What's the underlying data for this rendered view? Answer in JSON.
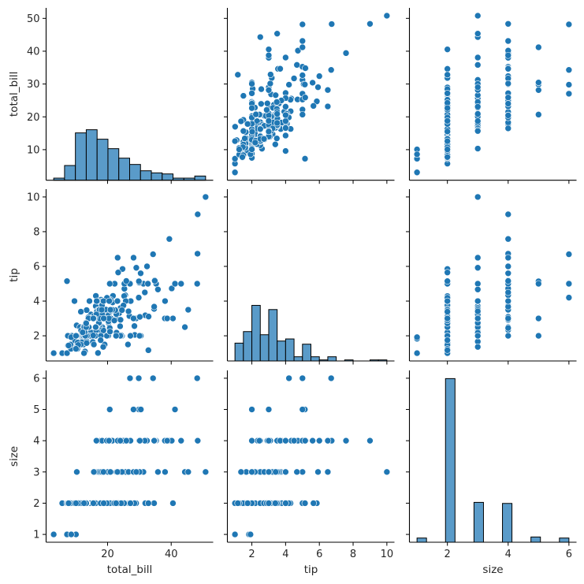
{
  "chart_data": {
    "type": "scatter",
    "kind": "pairplot",
    "variables": [
      "total_bill",
      "tip",
      "size"
    ],
    "axis_labels": {
      "total_bill": "total_bill",
      "tip": "tip",
      "size": "size"
    },
    "ranges": {
      "total_bill": [
        0.683,
        53.197
      ],
      "tip": [
        0.55,
        10.45
      ],
      "size": [
        0.75,
        6.25
      ]
    },
    "y_ticks": {
      "total_bill": [
        10,
        20,
        30,
        40,
        50
      ],
      "tip": [
        2,
        4,
        6,
        8,
        10
      ],
      "size": [
        1,
        2,
        3,
        4,
        5,
        6
      ]
    },
    "x_ticks": {
      "total_bill": [
        20,
        40
      ],
      "tip": [
        2,
        4,
        6,
        8,
        10
      ],
      "size": [
        2,
        4,
        6
      ]
    },
    "diagonal": {
      "type": "bar",
      "histogram_bins": {
        "total_bill": 14,
        "tip": 18,
        "size": 16
      },
      "shared_y": true
    },
    "grid": false,
    "colors": {
      "point": "#1f77b4",
      "point_edge": "#ffffff",
      "bar": "#5a9bc9",
      "bar_edge": "#000000"
    },
    "columns": [
      "total_bill",
      "tip",
      "size"
    ],
    "observations": [
      [
        16.99,
        1.01,
        2
      ],
      [
        10.34,
        1.66,
        3
      ],
      [
        21.01,
        3.5,
        3
      ],
      [
        23.68,
        3.31,
        2
      ],
      [
        24.59,
        3.61,
        4
      ],
      [
        25.29,
        4.71,
        4
      ],
      [
        8.77,
        2.0,
        2
      ],
      [
        26.88,
        3.12,
        4
      ],
      [
        15.04,
        1.96,
        2
      ],
      [
        14.78,
        3.23,
        2
      ],
      [
        10.27,
        1.71,
        2
      ],
      [
        35.26,
        5.0,
        4
      ],
      [
        15.42,
        1.57,
        2
      ],
      [
        18.43,
        3.0,
        4
      ],
      [
        14.83,
        3.02,
        2
      ],
      [
        21.58,
        3.92,
        2
      ],
      [
        10.33,
        1.67,
        3
      ],
      [
        16.29,
        3.71,
        3
      ],
      [
        16.97,
        3.5,
        3
      ],
      [
        20.65,
        3.35,
        3
      ],
      [
        17.92,
        4.08,
        2
      ],
      [
        20.29,
        2.75,
        2
      ],
      [
        15.77,
        2.23,
        2
      ],
      [
        39.42,
        7.58,
        4
      ],
      [
        19.82,
        3.18,
        2
      ],
      [
        17.81,
        2.34,
        4
      ],
      [
        13.37,
        2.0,
        2
      ],
      [
        12.69,
        2.0,
        2
      ],
      [
        21.7,
        4.3,
        2
      ],
      [
        19.65,
        3.0,
        2
      ],
      [
        9.55,
        1.45,
        2
      ],
      [
        18.35,
        2.5,
        4
      ],
      [
        15.06,
        3.0,
        2
      ],
      [
        20.69,
        2.45,
        4
      ],
      [
        17.78,
        3.27,
        2
      ],
      [
        24.06,
        3.6,
        3
      ],
      [
        16.31,
        2.0,
        3
      ],
      [
        16.93,
        3.07,
        3
      ],
      [
        18.69,
        2.31,
        3
      ],
      [
        31.27,
        5.0,
        3
      ],
      [
        16.04,
        2.24,
        3
      ],
      [
        17.46,
        2.54,
        2
      ],
      [
        13.94,
        3.06,
        2
      ],
      [
        9.68,
        1.32,
        2
      ],
      [
        30.4,
        5.6,
        4
      ],
      [
        18.29,
        3.0,
        2
      ],
      [
        22.23,
        5.0,
        2
      ],
      [
        32.4,
        6.0,
        4
      ],
      [
        28.55,
        2.05,
        3
      ],
      [
        18.04,
        3.0,
        2
      ],
      [
        12.54,
        2.5,
        2
      ],
      [
        10.29,
        2.6,
        2
      ],
      [
        34.81,
        5.2,
        4
      ],
      [
        9.94,
        1.56,
        2
      ],
      [
        25.56,
        4.34,
        4
      ],
      [
        19.49,
        3.51,
        2
      ],
      [
        38.01,
        3.0,
        4
      ],
      [
        26.41,
        1.5,
        2
      ],
      [
        11.24,
        1.76,
        2
      ],
      [
        48.27,
        6.73,
        4
      ],
      [
        20.29,
        3.21,
        2
      ],
      [
        13.81,
        2.0,
        2
      ],
      [
        11.02,
        1.98,
        2
      ],
      [
        18.29,
        3.76,
        4
      ],
      [
        17.59,
        2.64,
        3
      ],
      [
        20.08,
        3.15,
        3
      ],
      [
        16.45,
        2.47,
        2
      ],
      [
        3.07,
        1.0,
        1
      ],
      [
        20.23,
        2.01,
        2
      ],
      [
        15.01,
        2.09,
        2
      ],
      [
        12.02,
        1.97,
        2
      ],
      [
        17.07,
        3.0,
        3
      ],
      [
        26.86,
        3.14,
        2
      ],
      [
        25.28,
        5.0,
        2
      ],
      [
        14.73,
        2.2,
        2
      ],
      [
        10.51,
        1.25,
        2
      ],
      [
        17.92,
        3.08,
        2
      ],
      [
        27.2,
        4.0,
        4
      ],
      [
        22.76,
        3.0,
        2
      ],
      [
        17.29,
        2.71,
        2
      ],
      [
        19.44,
        3.0,
        2
      ],
      [
        16.66,
        3.4,
        2
      ],
      [
        10.07,
        1.83,
        1
      ],
      [
        32.68,
        5.0,
        2
      ],
      [
        15.98,
        2.03,
        2
      ],
      [
        34.83,
        5.17,
        4
      ],
      [
        13.03,
        2.0,
        2
      ],
      [
        18.28,
        4.0,
        2
      ],
      [
        24.71,
        5.85,
        2
      ],
      [
        21.16,
        3.0,
        2
      ],
      [
        28.97,
        3.0,
        2
      ],
      [
        22.49,
        3.5,
        2
      ],
      [
        5.75,
        1.0,
        2
      ],
      [
        16.32,
        4.3,
        2
      ],
      [
        22.75,
        3.25,
        2
      ],
      [
        40.17,
        4.73,
        4
      ],
      [
        27.28,
        4.0,
        2
      ],
      [
        12.03,
        1.5,
        2
      ],
      [
        21.01,
        3.0,
        2
      ],
      [
        12.46,
        1.5,
        2
      ],
      [
        11.35,
        2.5,
        2
      ],
      [
        15.38,
        3.0,
        2
      ],
      [
        44.3,
        2.5,
        3
      ],
      [
        22.42,
        3.48,
        2
      ],
      [
        20.92,
        4.08,
        2
      ],
      [
        15.36,
        1.64,
        2
      ],
      [
        20.49,
        4.06,
        2
      ],
      [
        25.21,
        4.29,
        2
      ],
      [
        18.24,
        3.76,
        2
      ],
      [
        14.31,
        4.0,
        2
      ],
      [
        14.0,
        3.0,
        2
      ],
      [
        7.25,
        1.0,
        1
      ],
      [
        38.07,
        4.0,
        3
      ],
      [
        23.95,
        2.55,
        2
      ],
      [
        25.71,
        4.0,
        3
      ],
      [
        17.31,
        3.5,
        2
      ],
      [
        29.93,
        5.07,
        4
      ],
      [
        10.65,
        1.5,
        2
      ],
      [
        12.43,
        1.8,
        2
      ],
      [
        24.08,
        2.92,
        4
      ],
      [
        11.69,
        2.31,
        2
      ],
      [
        13.42,
        1.68,
        2
      ],
      [
        14.26,
        2.5,
        2
      ],
      [
        15.95,
        2.0,
        2
      ],
      [
        12.48,
        2.52,
        2
      ],
      [
        29.8,
        4.2,
        6
      ],
      [
        8.52,
        1.48,
        2
      ],
      [
        14.52,
        2.0,
        2
      ],
      [
        11.38,
        2.0,
        2
      ],
      [
        22.82,
        2.18,
        3
      ],
      [
        19.08,
        1.5,
        2
      ],
      [
        20.27,
        2.83,
        2
      ],
      [
        11.17,
        1.5,
        2
      ],
      [
        12.26,
        2.0,
        2
      ],
      [
        18.26,
        3.25,
        2
      ],
      [
        8.51,
        1.25,
        2
      ],
      [
        10.33,
        2.0,
        2
      ],
      [
        14.15,
        2.0,
        2
      ],
      [
        16.0,
        2.0,
        2
      ],
      [
        13.16,
        2.75,
        2
      ],
      [
        17.47,
        3.5,
        2
      ],
      [
        34.3,
        6.7,
        6
      ],
      [
        41.19,
        5.0,
        5
      ],
      [
        27.05,
        5.0,
        6
      ],
      [
        16.43,
        2.3,
        2
      ],
      [
        8.35,
        1.5,
        2
      ],
      [
        18.64,
        1.36,
        3
      ],
      [
        11.87,
        1.63,
        2
      ],
      [
        9.78,
        1.73,
        2
      ],
      [
        7.51,
        2.0,
        2
      ],
      [
        14.07,
        2.5,
        2
      ],
      [
        13.13,
        2.0,
        2
      ],
      [
        17.26,
        2.74,
        3
      ],
      [
        24.55,
        2.0,
        4
      ],
      [
        19.77,
        2.0,
        4
      ],
      [
        29.85,
        5.14,
        5
      ],
      [
        48.17,
        5.0,
        6
      ],
      [
        25.0,
        3.75,
        4
      ],
      [
        13.39,
        2.61,
        2
      ],
      [
        16.49,
        2.0,
        4
      ],
      [
        21.5,
        3.5,
        4
      ],
      [
        12.66,
        2.5,
        2
      ],
      [
        16.21,
        2.0,
        3
      ],
      [
        13.81,
        2.0,
        2
      ],
      [
        17.51,
        3.0,
        2
      ],
      [
        24.52,
        3.48,
        3
      ],
      [
        20.76,
        2.24,
        2
      ],
      [
        31.71,
        4.5,
        4
      ],
      [
        10.59,
        1.61,
        2
      ],
      [
        10.63,
        2.0,
        2
      ],
      [
        50.81,
        10.0,
        3
      ],
      [
        15.81,
        3.16,
        2
      ],
      [
        7.25,
        5.15,
        2
      ],
      [
        31.85,
        3.18,
        2
      ],
      [
        16.82,
        4.0,
        2
      ],
      [
        32.9,
        3.11,
        2
      ],
      [
        17.89,
        2.0,
        2
      ],
      [
        14.48,
        2.0,
        2
      ],
      [
        9.6,
        4.0,
        2
      ],
      [
        34.63,
        3.55,
        2
      ],
      [
        34.65,
        3.68,
        4
      ],
      [
        23.33,
        5.65,
        2
      ],
      [
        45.35,
        3.5,
        3
      ],
      [
        23.17,
        6.5,
        4
      ],
      [
        40.55,
        3.0,
        2
      ],
      [
        20.69,
        5.0,
        5
      ],
      [
        20.9,
        3.5,
        3
      ],
      [
        30.46,
        2.0,
        5
      ],
      [
        18.15,
        3.5,
        3
      ],
      [
        23.1,
        4.0,
        3
      ],
      [
        15.69,
        1.5,
        2
      ],
      [
        19.81,
        4.19,
        2
      ],
      [
        28.44,
        2.56,
        2
      ],
      [
        15.48,
        2.02,
        2
      ],
      [
        16.58,
        4.0,
        2
      ],
      [
        7.56,
        1.44,
        2
      ],
      [
        10.34,
        2.0,
        2
      ],
      [
        43.11,
        5.0,
        4
      ],
      [
        13.0,
        2.0,
        2
      ],
      [
        13.51,
        2.0,
        2
      ],
      [
        18.71,
        4.0,
        3
      ],
      [
        12.74,
        2.01,
        2
      ],
      [
        13.0,
        2.0,
        2
      ],
      [
        16.4,
        2.5,
        2
      ],
      [
        20.53,
        4.0,
        4
      ],
      [
        16.47,
        3.23,
        3
      ],
      [
        26.59,
        3.41,
        3
      ],
      [
        38.73,
        3.0,
        4
      ],
      [
        24.27,
        2.03,
        2
      ],
      [
        12.76,
        2.23,
        2
      ],
      [
        30.06,
        2.0,
        3
      ],
      [
        25.89,
        5.16,
        4
      ],
      [
        48.33,
        9.0,
        4
      ],
      [
        13.27,
        2.5,
        2
      ],
      [
        28.17,
        6.5,
        3
      ],
      [
        12.9,
        1.1,
        2
      ],
      [
        28.15,
        3.0,
        5
      ],
      [
        11.59,
        1.5,
        2
      ],
      [
        7.74,
        1.44,
        2
      ],
      [
        30.14,
        3.09,
        4
      ],
      [
        12.16,
        2.2,
        2
      ],
      [
        13.42,
        3.48,
        2
      ],
      [
        8.58,
        1.92,
        1
      ],
      [
        15.98,
        3.0,
        3
      ],
      [
        13.42,
        1.58,
        2
      ],
      [
        16.27,
        2.5,
        2
      ],
      [
        10.09,
        2.0,
        2
      ],
      [
        20.45,
        3.0,
        4
      ],
      [
        13.28,
        2.72,
        2
      ],
      [
        22.12,
        2.88,
        2
      ],
      [
        24.01,
        2.0,
        4
      ],
      [
        15.69,
        3.0,
        3
      ],
      [
        11.61,
        3.39,
        2
      ],
      [
        10.77,
        1.47,
        2
      ],
      [
        15.53,
        3.0,
        2
      ],
      [
        10.07,
        1.25,
        2
      ],
      [
        12.6,
        1.0,
        2
      ],
      [
        32.83,
        1.17,
        2
      ],
      [
        35.83,
        4.67,
        3
      ],
      [
        29.03,
        5.92,
        3
      ],
      [
        27.18,
        2.0,
        2
      ],
      [
        22.67,
        2.0,
        2
      ],
      [
        17.82,
        1.75,
        2
      ],
      [
        18.78,
        3.0,
        2
      ]
    ]
  }
}
